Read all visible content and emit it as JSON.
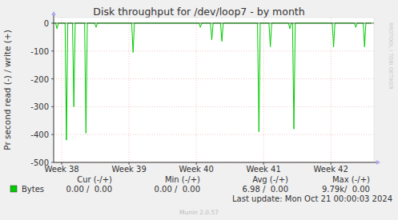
{
  "chart_data": {
    "type": "line",
    "title": "Disk throughput for /dev/loop7 - by month",
    "y_label": "Pr second read (-) / write (+)",
    "x": [
      37.88,
      37.91,
      37.93,
      37.95,
      38.05,
      38.07,
      38.09,
      38.16,
      38.18,
      38.2,
      38.34,
      38.36,
      38.38,
      38.49,
      38.51,
      38.53,
      39.04,
      39.06,
      39.08,
      40.04,
      40.06,
      40.08,
      40.21,
      40.23,
      40.25,
      40.36,
      40.38,
      40.4,
      40.91,
      40.93,
      40.95,
      41.08,
      41.1,
      41.12,
      41.37,
      41.39,
      41.41,
      41.43,
      41.45,
      41.47,
      42.02,
      42.04,
      42.06,
      42.35,
      42.37,
      42.39,
      42.48,
      42.5,
      42.52,
      42.6
    ],
    "series": [
      {
        "name": "Bytes",
        "color": "#00cc00",
        "values": [
          0,
          0,
          -20,
          0,
          0,
          -420,
          0,
          0,
          -300,
          0,
          0,
          -395,
          0,
          0,
          -15,
          0,
          0,
          -105,
          0,
          0,
          -15,
          0,
          0,
          -60,
          0,
          0,
          -65,
          0,
          0,
          -390,
          0,
          0,
          -85,
          0,
          0,
          -20,
          0,
          0,
          -380,
          0,
          0,
          -85,
          0,
          0,
          -15,
          0,
          0,
          -85,
          0,
          0
        ]
      }
    ],
    "xlim": [
      37.88,
      42.64
    ],
    "xticks": [
      {
        "value": 38,
        "label": "Week 38"
      },
      {
        "value": 39,
        "label": "Week 39"
      },
      {
        "value": 40,
        "label": "Week 40"
      },
      {
        "value": 41,
        "label": "Week 41"
      },
      {
        "value": 42,
        "label": "Week 42"
      }
    ],
    "ylim": [
      -500,
      20
    ],
    "yticks": [
      -500,
      -400,
      -300,
      -200,
      -100,
      0
    ],
    "grid": true,
    "summary": {
      "columns": [
        "Cur (-/+)",
        "Min (-/+)",
        "Avg (-/+)",
        "Max (-/+)"
      ],
      "values": [
        "0.00 /  0.00",
        "0.00 /  0.00",
        "6.98 /  0.00",
        "9.79k/  0.00"
      ]
    },
    "footer": "Last update: Mon Oct 21 00:00:03 2024",
    "credit": "Munin 2.0.57",
    "watermark": "RRDTOOL / TOBI OETIKER"
  }
}
